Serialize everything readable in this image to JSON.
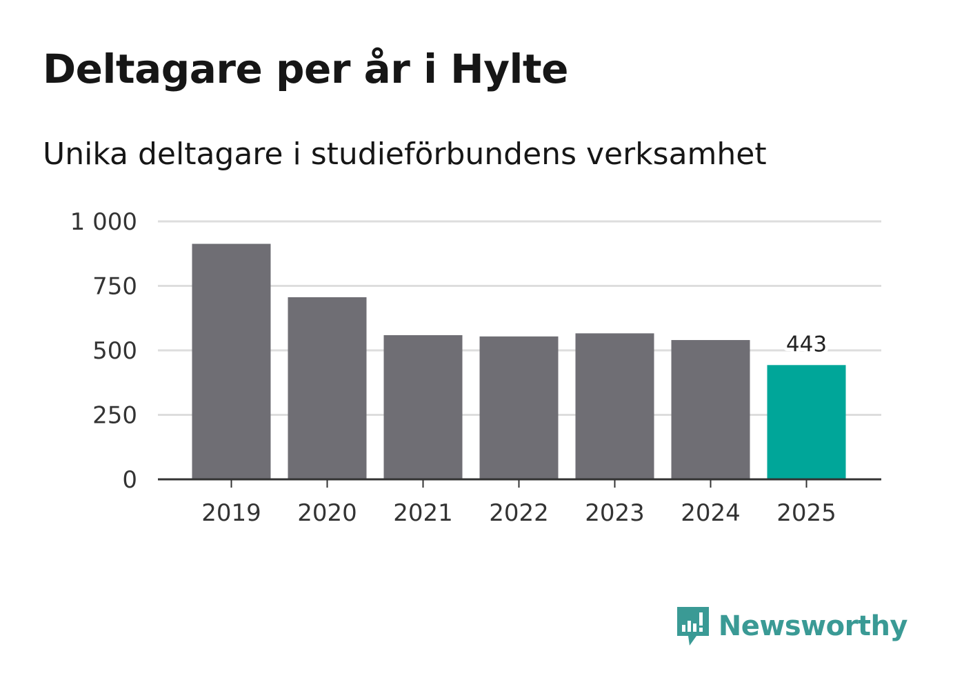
{
  "title": "Deltagare per år i Hylte",
  "subtitle": "Unika deltagare i studieförbundens verksamhet",
  "brand": {
    "name": "Newsworthy",
    "icon": "newsworthy-chart-bubble-icon",
    "color": "#3a9a95"
  },
  "colors": {
    "bar": "#6f6e74",
    "highlight": "#00a699",
    "grid": "#dddddd",
    "axis": "#333333"
  },
  "chart_data": {
    "type": "bar",
    "title": "Deltagare per år i Hylte",
    "subtitle": "Unika deltagare i studieförbundens verksamhet",
    "xlabel": "",
    "ylabel": "",
    "categories": [
      "2019",
      "2020",
      "2021",
      "2022",
      "2023",
      "2024",
      "2025"
    ],
    "values": [
      913,
      706,
      559,
      554,
      566,
      540,
      443
    ],
    "highlight_index": 6,
    "data_labels": [
      null,
      null,
      null,
      null,
      null,
      null,
      "443"
    ],
    "ylim": [
      0,
      1000
    ],
    "yticks": [
      0,
      250,
      500,
      750,
      1000
    ],
    "ytick_labels": [
      "0",
      "250",
      "500",
      "750",
      "1 000"
    ],
    "grid": true,
    "legend": "none"
  }
}
